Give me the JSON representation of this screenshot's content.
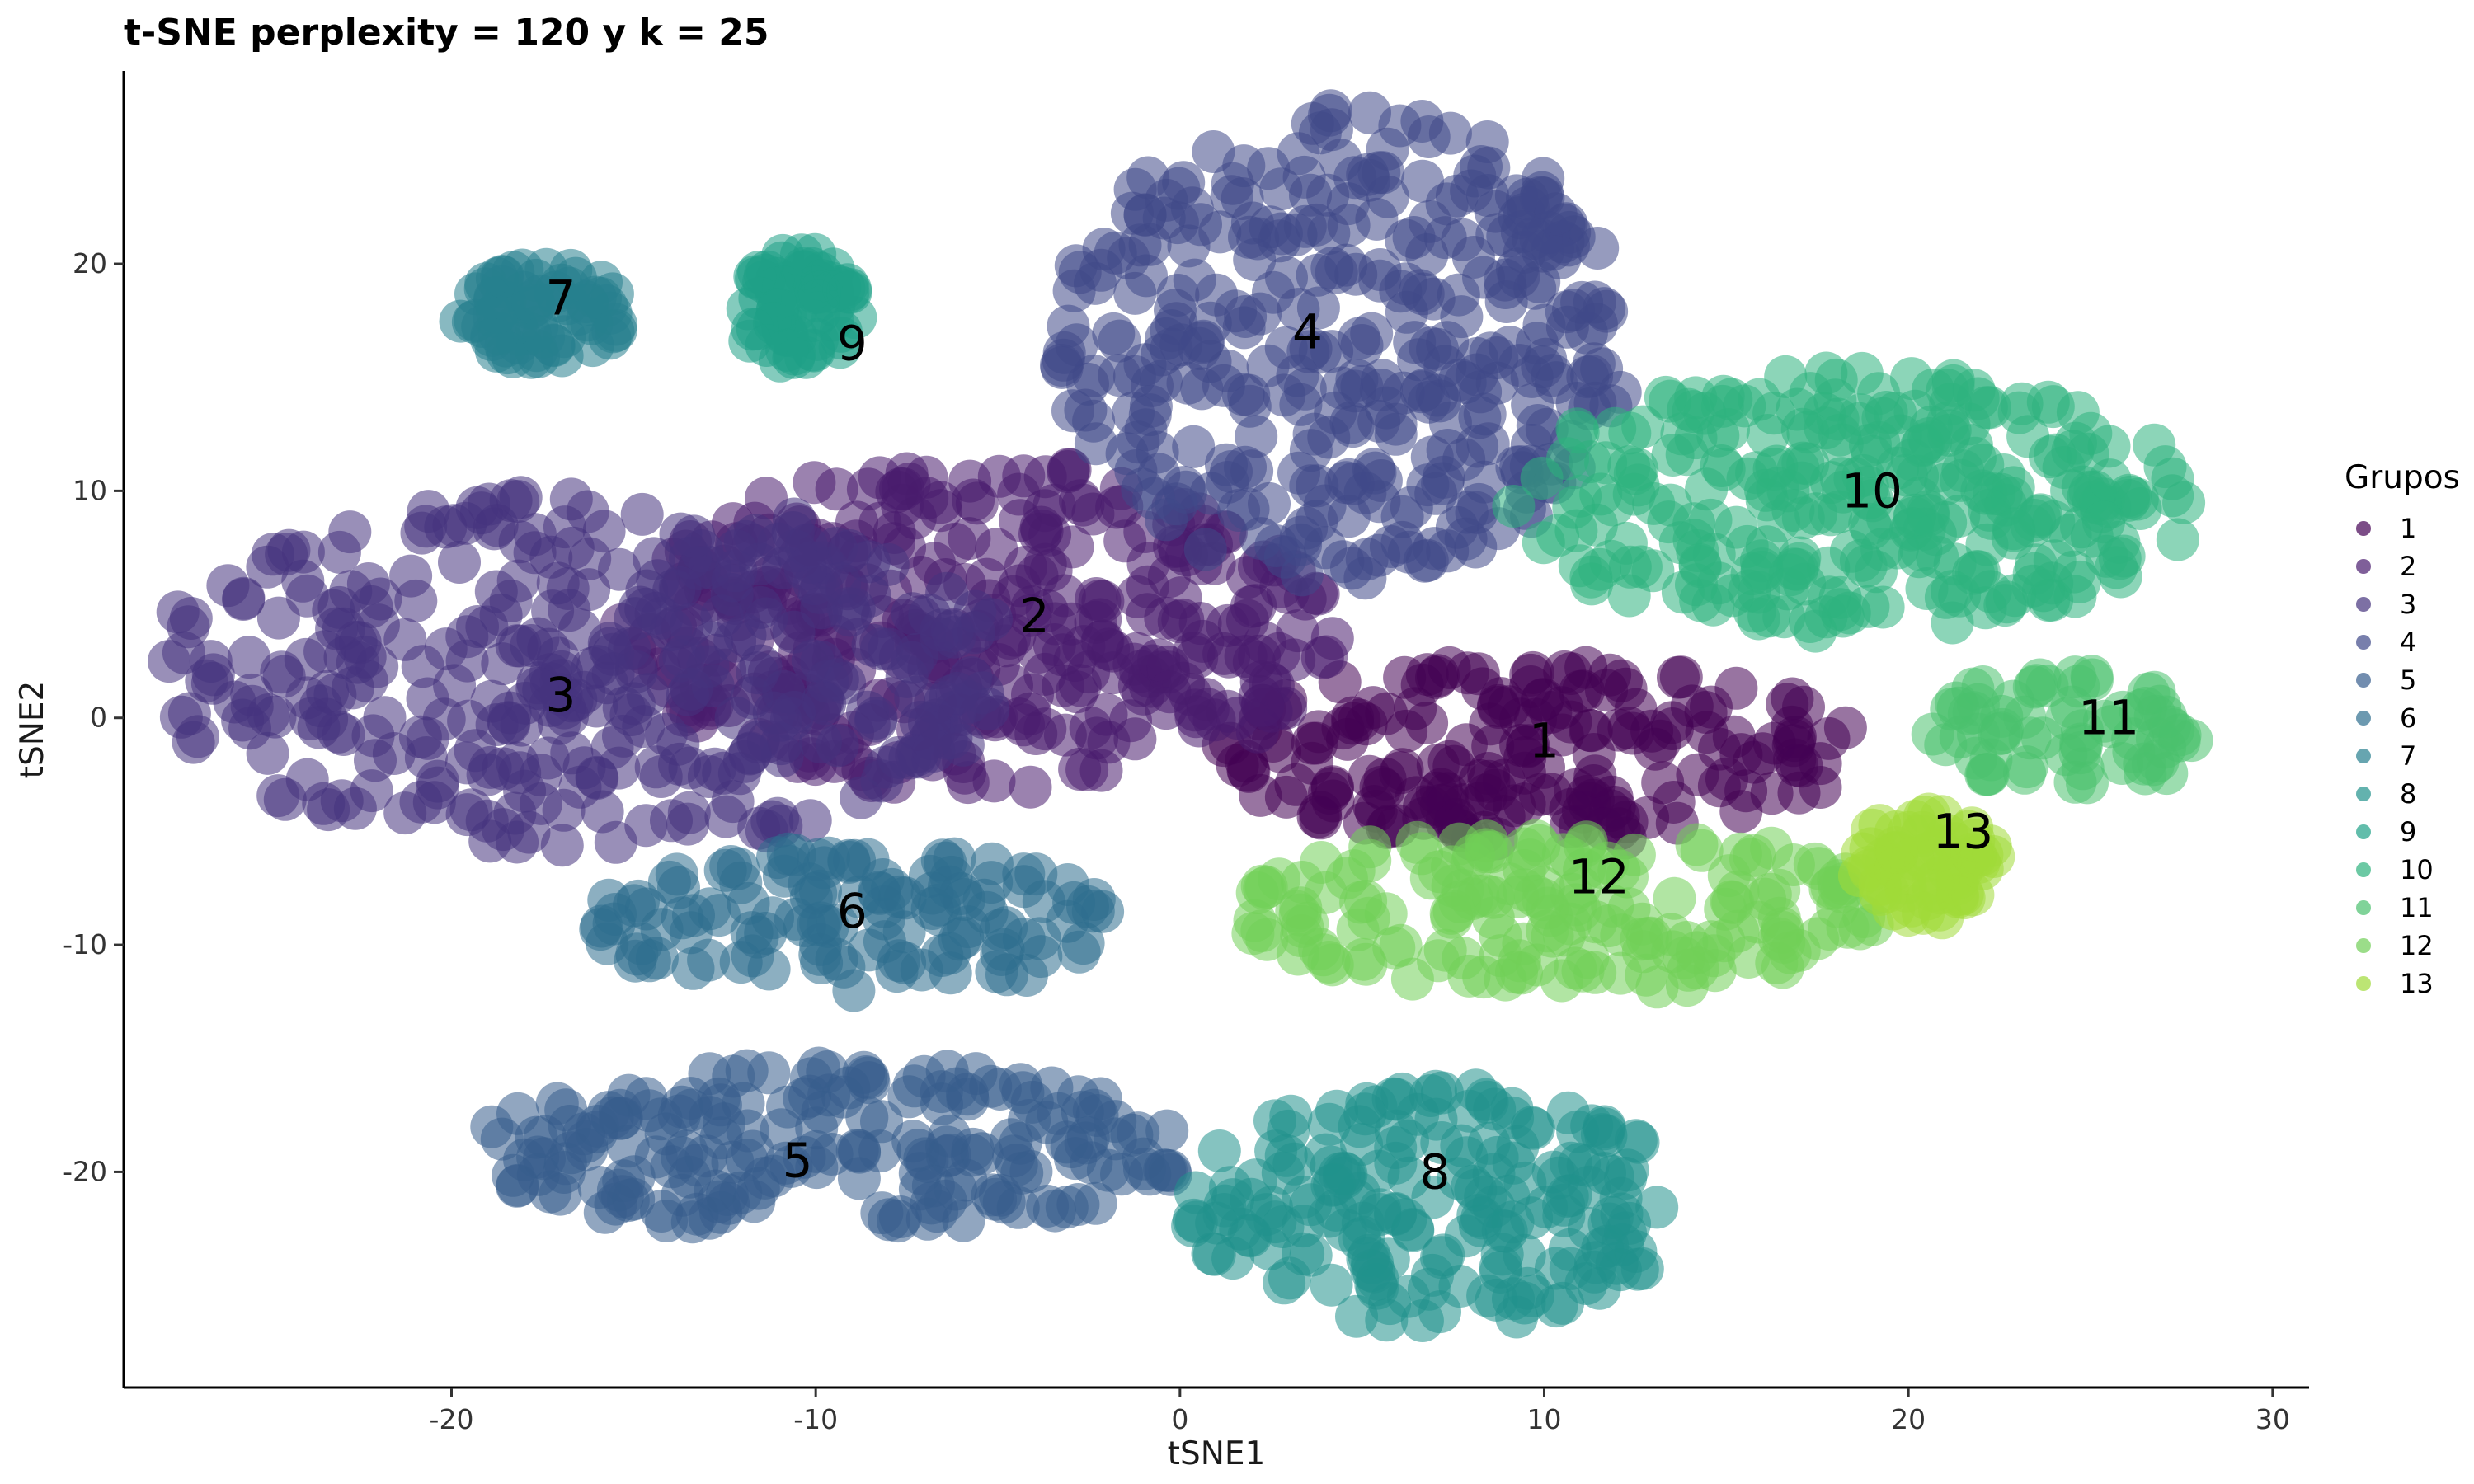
{
  "chart_data": {
    "type": "scatter",
    "title": "t-SNE perplexity = 120 y k = 25",
    "xlabel": "tSNE1",
    "ylabel": "tSNE2",
    "xlim": [
      -29,
      31
    ],
    "ylim": [
      -29.5,
      28.5
    ],
    "x_ticks": [
      -20,
      -10,
      0,
      10,
      20,
      30
    ],
    "y_ticks": [
      -20,
      -10,
      0,
      10,
      20
    ],
    "x_tick_labels": [
      "-20",
      "-10",
      "0",
      "10",
      "20",
      "30"
    ],
    "y_tick_labels": [
      "-20",
      "-10",
      "0",
      "10",
      "20"
    ],
    "grid": false,
    "legend": {
      "title": "Grupos",
      "position": "right",
      "entries": [
        "1",
        "2",
        "3",
        "4",
        "5",
        "6",
        "7",
        "8",
        "9",
        "10",
        "11",
        "12",
        "13"
      ]
    },
    "series": [
      {
        "name": "1",
        "color": "#440154",
        "label_at": [
          10,
          -1
        ],
        "region": {
          "center": [
            9.8,
            -1.5
          ],
          "rx": 8.5,
          "ry": 3.8
        }
      },
      {
        "name": "2",
        "color": "#481B6D",
        "label_at": [
          -4,
          4.5
        ],
        "region": {
          "center": [
            -5.5,
            4.0
          ],
          "rx": 9.5,
          "ry": 7.0
        }
      },
      {
        "name": "3",
        "color": "#46337E",
        "label_at": [
          -17,
          1
        ],
        "region": {
          "center": [
            -16.5,
            2.0
          ],
          "rx": 11.5,
          "ry": 7.5
        }
      },
      {
        "name": "4",
        "color": "#3F4889",
        "label_at": [
          3.5,
          17
        ],
        "region": {
          "center": [
            4.5,
            16.5
          ],
          "rx": 7.5,
          "ry": 10.0
        }
      },
      {
        "name": "5",
        "color": "#365C8D",
        "label_at": [
          -10.5,
          -19.5
        ],
        "region": {
          "center": [
            -9.5,
            -19.0
          ],
          "rx": 9.5,
          "ry": 3.5
        }
      },
      {
        "name": "6",
        "color": "#2E6E8E",
        "label_at": [
          -9,
          -8.5
        ],
        "region": {
          "center": [
            -9.0,
            -9.0
          ],
          "rx": 7.0,
          "ry": 3.0
        }
      },
      {
        "name": "7",
        "color": "#277F8E",
        "label_at": [
          -17,
          18.5
        ],
        "region": {
          "center": [
            -17.5,
            17.8
          ],
          "rx": 2.2,
          "ry": 2.0
        }
      },
      {
        "name": "8",
        "color": "#21918C",
        "label_at": [
          7,
          -20
        ],
        "region": {
          "center": [
            7.0,
            -21.5
          ],
          "rx": 6.5,
          "ry": 5.0
        }
      },
      {
        "name": "9",
        "color": "#1FA187",
        "label_at": [
          -9,
          16.5
        ],
        "region": {
          "center": [
            -10.5,
            18.0
          ],
          "rx": 1.6,
          "ry": 2.5
        }
      },
      {
        "name": "10",
        "color": "#2DB27D",
        "label_at": [
          19,
          10
        ],
        "region": {
          "center": [
            18.5,
            9.5
          ],
          "rx": 9.0,
          "ry": 5.5
        }
      },
      {
        "name": "11",
        "color": "#4AC16D",
        "label_at": [
          25.5,
          0
        ],
        "region": {
          "center": [
            24.5,
            -0.5
          ],
          "rx": 3.8,
          "ry": 2.5
        }
      },
      {
        "name": "12",
        "color": "#71CF57",
        "label_at": [
          11.5,
          -7
        ],
        "region": {
          "center": [
            10.5,
            -8.5
          ],
          "rx": 8.5,
          "ry": 3.5
        }
      },
      {
        "name": "13",
        "color": "#A0DA39",
        "label_at": [
          21.5,
          -5
        ],
        "region": {
          "center": [
            20.5,
            -6.5
          ],
          "rx": 1.8,
          "ry": 2.5
        }
      }
    ]
  }
}
